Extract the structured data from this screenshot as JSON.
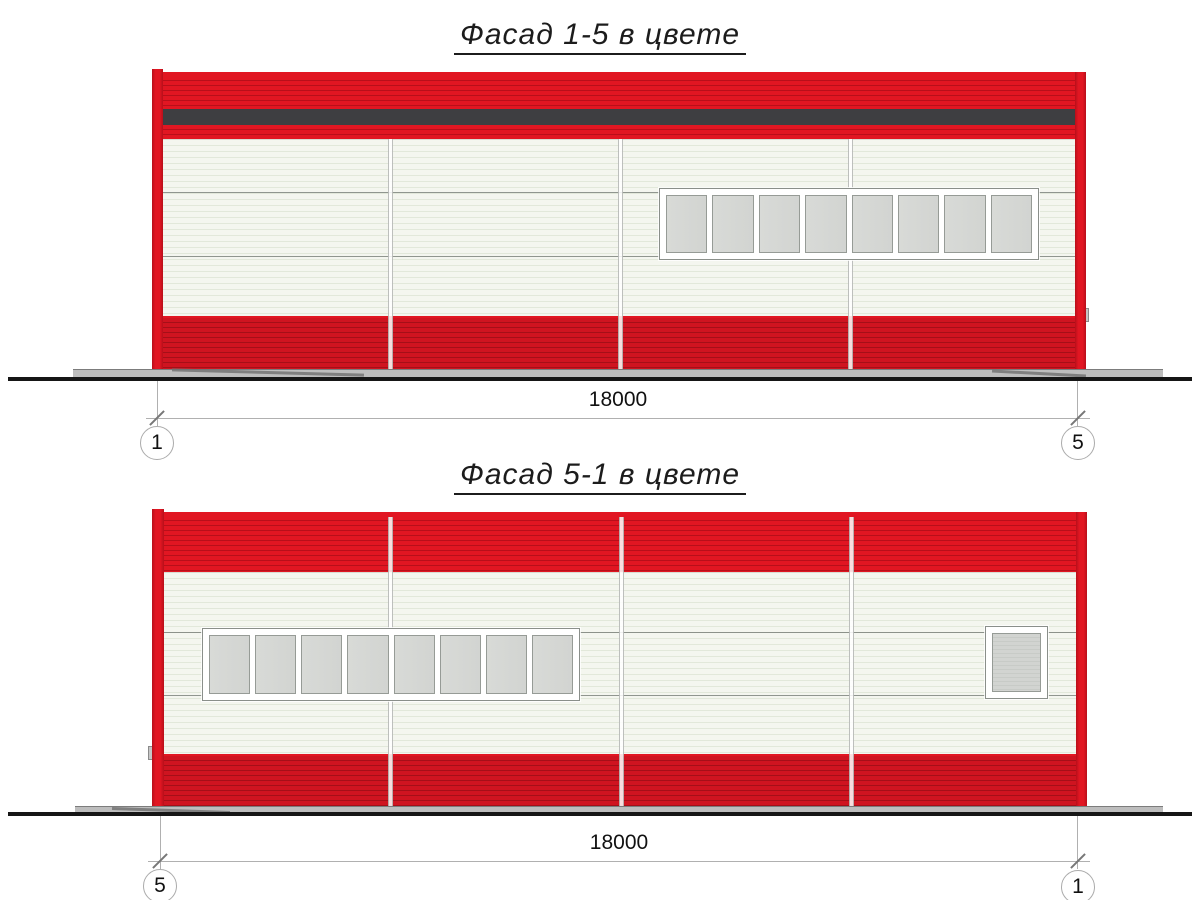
{
  "colors": {
    "red_bright": "#e11622",
    "red_line": "#b80f1a",
    "red_deep": "#cf1420",
    "red_deep_line": "#a50f18",
    "dark_stripe": "#3e3e41",
    "panel_white": "#f4f6ef",
    "panel_line": "#e2e8da",
    "frame_gray": "#8a8f8a",
    "glass_gray": "#d6d8d5",
    "plinth_gray": "#bdbdbd",
    "ground_black": "#161616",
    "text_dark": "#1c1c1c"
  },
  "facades": [
    {
      "title": "Фасад 1-5 в цвете",
      "dimension_label": "18000",
      "left_marker": "1",
      "right_marker": "5",
      "ribbon_panes": 8
    },
    {
      "title": "Фасад 5-1 в цвете",
      "dimension_label": "18000",
      "left_marker": "5",
      "right_marker": "1",
      "ribbon_panes": 8
    }
  ]
}
